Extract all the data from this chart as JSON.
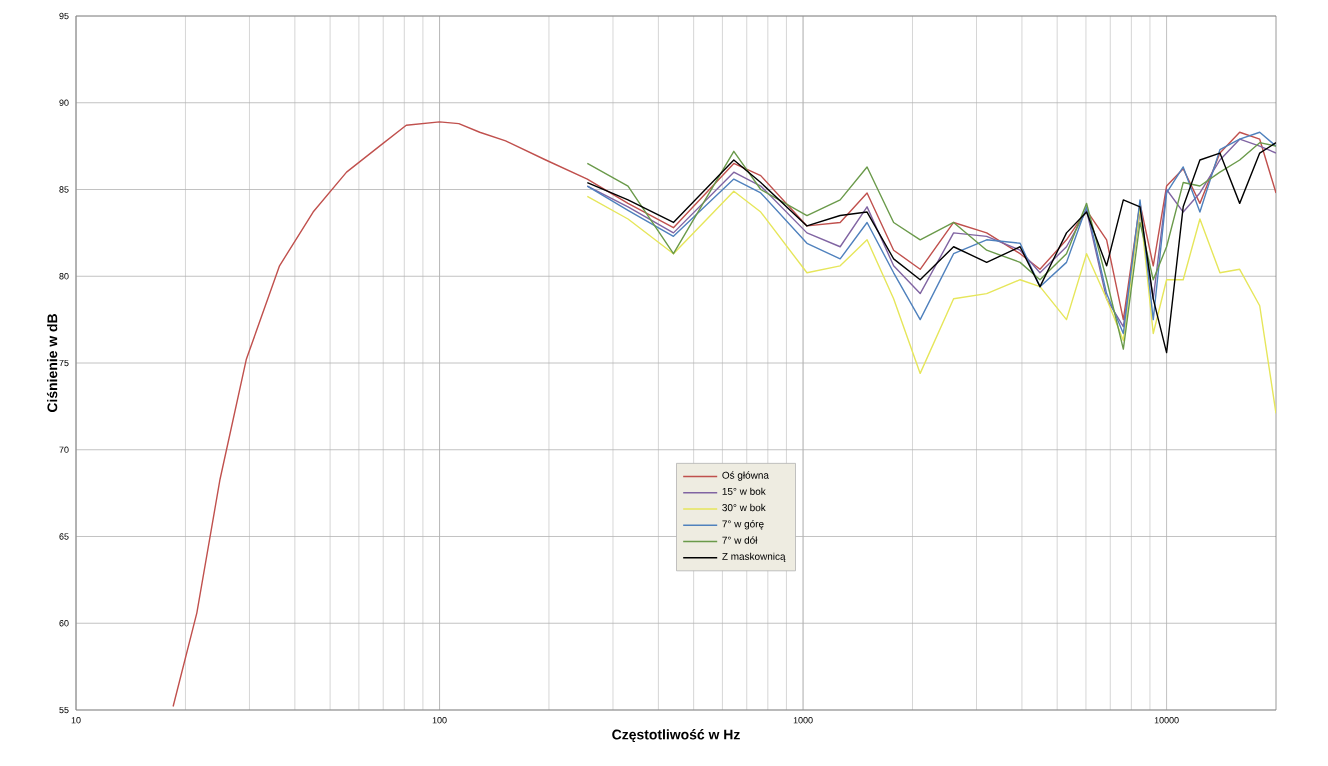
{
  "chart_data": {
    "type": "line",
    "xlabel": "Częstotliwość w Hz",
    "ylabel": "Ciśnienie w dB",
    "log": "x",
    "grid": true,
    "legend": "bottom",
    "xlim": [
      10,
      20000
    ],
    "xticks": [
      10,
      100,
      1000,
      10000
    ],
    "ylim": [
      55,
      95
    ],
    "yticks": [
      55,
      60,
      65,
      70,
      75,
      80,
      85,
      90,
      95
    ],
    "series": [
      {
        "name": "Oś główna",
        "color": "#c0504d",
        "x": [
          18.5,
          21.5,
          24.9,
          29.4,
          36.3,
          44.9,
          55.5,
          68.4,
          81,
          100,
          113,
          129,
          152,
          196,
          255,
          330,
          440,
          645,
          765,
          1025,
          1265,
          1500,
          1775,
          2100,
          2595,
          3200,
          3955,
          4485,
          5305,
          6025,
          6840,
          7605,
          8450,
          9190,
          10000,
          11110,
          12350,
          14020,
          15890,
          18040,
          20000
        ],
        "values": [
          55.2,
          60.6,
          68.3,
          75.2,
          80.6,
          83.7,
          86.0,
          87.5,
          88.7,
          88.9,
          88.8,
          88.3,
          87.8,
          86.7,
          85.6,
          84.2,
          82.8,
          86.5,
          85.8,
          82.9,
          83.1,
          84.8,
          81.5,
          80.4,
          83.1,
          82.5,
          81.3,
          80.4,
          82.1,
          83.8,
          82.1,
          77.5,
          84.2,
          80.6,
          85.2,
          86.2,
          84.2,
          87.1,
          88.3,
          87.9,
          84.8
        ]
      },
      {
        "name": "15° w bok",
        "color": "#8064a2",
        "x": [
          255,
          330,
          440,
          645,
          765,
          1025,
          1265,
          1500,
          1775,
          2100,
          2595,
          3200,
          3955,
          4485,
          5305,
          6025,
          6840,
          7605,
          8450,
          9190,
          10000,
          11110,
          12350,
          14020,
          15890,
          18040,
          20000
        ],
        "values": [
          85.2,
          84.0,
          82.5,
          86.0,
          85.2,
          82.5,
          81.7,
          84.0,
          80.6,
          79.0,
          82.5,
          82.3,
          81.5,
          80.2,
          81.7,
          83.8,
          78.7,
          77.1,
          83.7,
          78.7,
          85.0,
          83.7,
          84.8,
          86.7,
          87.9,
          87.5,
          87.1
        ]
      },
      {
        "name": "30° w bok",
        "color": "#e6e65a",
        "x": [
          255,
          330,
          440,
          645,
          765,
          1025,
          1265,
          1500,
          1775,
          2100,
          2595,
          3200,
          3955,
          4485,
          5305,
          6025,
          6840,
          7605,
          8450,
          9190,
          10000,
          11110,
          12350,
          14020,
          15890,
          18040,
          20000
        ],
        "values": [
          84.6,
          83.3,
          81.3,
          84.9,
          83.7,
          80.2,
          80.6,
          82.1,
          78.7,
          74.4,
          78.7,
          79.0,
          79.8,
          79.4,
          77.5,
          81.3,
          78.7,
          76.3,
          84.0,
          76.7,
          79.8,
          79.8,
          83.3,
          80.2,
          80.4,
          78.3,
          72.1
        ]
      },
      {
        "name": "7° w górę",
        "color": "#4f81bd",
        "x": [
          255,
          330,
          440,
          645,
          765,
          1025,
          1265,
          1500,
          1775,
          2100,
          2595,
          3200,
          3955,
          4485,
          5305,
          6025,
          6840,
          7605,
          8450,
          9190,
          10000,
          11110,
          12350,
          14020,
          15890,
          18040,
          20000
        ],
        "values": [
          85.2,
          83.8,
          82.3,
          85.6,
          84.8,
          81.9,
          81.0,
          83.1,
          80.2,
          77.5,
          81.3,
          82.1,
          81.9,
          79.4,
          80.8,
          84.0,
          79.0,
          76.7,
          84.4,
          77.5,
          84.8,
          86.3,
          83.7,
          87.3,
          87.9,
          88.3,
          87.5
        ]
      },
      {
        "name": "7° w dół",
        "color": "#6a9a4a",
        "x": [
          255,
          330,
          440,
          645,
          765,
          1025,
          1265,
          1500,
          1775,
          2100,
          2595,
          3200,
          3955,
          4485,
          5305,
          6025,
          6840,
          7605,
          8450,
          9190,
          10000,
          11110,
          12350,
          14020,
          15890,
          18040,
          20000
        ],
        "values": [
          86.5,
          85.2,
          81.3,
          87.2,
          85.0,
          83.5,
          84.4,
          86.3,
          83.1,
          82.1,
          83.1,
          81.5,
          80.8,
          79.8,
          81.3,
          84.2,
          79.8,
          75.8,
          83.1,
          79.8,
          81.7,
          85.4,
          85.2,
          86.0,
          86.7,
          87.7,
          87.5
        ]
      },
      {
        "name": "Z maskownicą",
        "color": "#000000",
        "x": [
          255,
          330,
          440,
          645,
          765,
          1025,
          1265,
          1500,
          1775,
          2100,
          2595,
          3200,
          3955,
          4485,
          5305,
          6025,
          6840,
          7605,
          8450,
          9190,
          10000,
          11110,
          12350,
          14020,
          15890,
          18040,
          20000
        ],
        "values": [
          85.4,
          84.4,
          83.1,
          86.7,
          85.4,
          82.9,
          83.5,
          83.7,
          81.0,
          79.8,
          81.7,
          80.8,
          81.7,
          79.4,
          82.5,
          83.7,
          80.6,
          84.4,
          84.0,
          78.7,
          75.6,
          84.0,
          86.7,
          87.1,
          84.2,
          87.1,
          87.7
        ]
      }
    ]
  }
}
